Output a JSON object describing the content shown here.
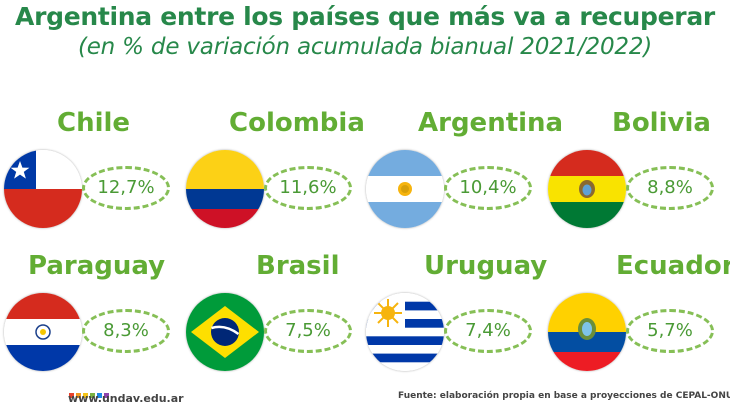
{
  "header": {
    "title": "Argentina entre los países que más va a recuperar",
    "subtitle": "(en % de variación acumulada bianual 2021/2022)"
  },
  "chart_data": {
    "type": "table",
    "title": "Argentina entre los países que más va a recuperar",
    "subtitle": "(en % de variación acumulada bianual 2021/2022)",
    "categories": [
      "Chile",
      "Colombia",
      "Argentina",
      "Bolivia",
      "Paraguay",
      "Brasil",
      "Uruguay",
      "Ecuador"
    ],
    "values": [
      12.7,
      11.6,
      10.4,
      8.8,
      8.3,
      7.5,
      7.4,
      5.7
    ],
    "labels": [
      "12,7%",
      "11,6%",
      "10,4%",
      "8,8%",
      "8,3%",
      "7,5%",
      "7,4%",
      "5,7%"
    ]
  },
  "countries": [
    {
      "name": "Chile",
      "value": "12,7%",
      "flag": "chile-flag-icon"
    },
    {
      "name": "Colombia",
      "value": "11,6%",
      "flag": "colombia-flag-icon"
    },
    {
      "name": "Argentina",
      "value": "10,4%",
      "flag": "argentina-flag-icon"
    },
    {
      "name": "Bolivia",
      "value": "8,8%",
      "flag": "bolivia-flag-icon"
    },
    {
      "name": "Paraguay",
      "value": "8,3%",
      "flag": "paraguay-flag-icon"
    },
    {
      "name": "Brasil",
      "value": "7,5%",
      "flag": "brasil-flag-icon"
    },
    {
      "name": "Uruguay",
      "value": "7,4%",
      "flag": "uruguay-flag-icon"
    },
    {
      "name": "Ecuador",
      "value": "5,7%",
      "flag": "ecuador-flag-icon"
    }
  ],
  "footer": {
    "url": "www.undav.edu.ar",
    "source": "Fuente: elaboración propia en base a proyecciones de CEPAL-ONU."
  },
  "colors": {
    "title": "#27884a",
    "country_name": "#62ad34",
    "pill_border": "#86bf56",
    "logo_dots": [
      "#e7412b",
      "#f29a1f",
      "#f5c518",
      "#7cb342",
      "#1e88e5",
      "#8e44ad"
    ]
  }
}
